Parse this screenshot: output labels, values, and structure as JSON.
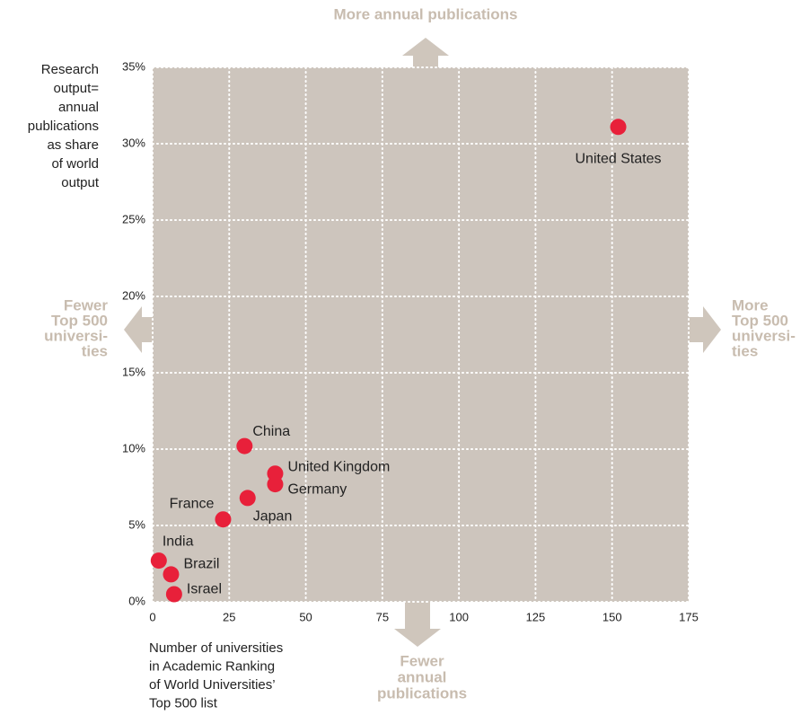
{
  "chart_data": {
    "type": "scatter",
    "top_annotation": [
      "More annual publications"
    ],
    "bottom_annotation": [
      "Fewer",
      "annual",
      "publications"
    ],
    "left_annotation": [
      "Fewer",
      "Top 500",
      "universi-",
      "ties"
    ],
    "right_annotation": [
      "More",
      "Top 500",
      "universi-",
      "ties"
    ],
    "ylabel": [
      "Research",
      "output=",
      "annual",
      "publications",
      "as share",
      "of world",
      "output"
    ],
    "xlabel": [
      "Number of universities",
      "in Academic Ranking",
      "of World Universities’",
      "Top 500 list"
    ],
    "labels": [
      "United States",
      "China",
      "United Kingdom",
      "Germany",
      "Japan",
      "France",
      "India",
      "Brazil",
      "Israel"
    ],
    "x": [
      152,
      30,
      40,
      40,
      31,
      23,
      2,
      6,
      7
    ],
    "values": [
      31.1,
      10.2,
      8.4,
      7.7,
      6.8,
      5.4,
      2.7,
      1.8,
      0.5
    ],
    "color": "#e8203a",
    "xlim": [
      0,
      175
    ],
    "xticks": [
      0,
      25,
      50,
      75,
      100,
      125,
      150,
      175
    ],
    "ylim": [
      0,
      35
    ],
    "yticks": [
      {
        "value": 0,
        "label": "0%"
      },
      {
        "value": 5,
        "label": "5%"
      },
      {
        "value": 10,
        "label": "10%"
      },
      {
        "value": 15,
        "label": "15%"
      },
      {
        "value": 20,
        "label": "20%"
      },
      {
        "value": 25,
        "label": "25%"
      },
      {
        "value": 30,
        "label": "30%"
      },
      {
        "value": 35,
        "label": "35%"
      }
    ],
    "grid": true
  }
}
